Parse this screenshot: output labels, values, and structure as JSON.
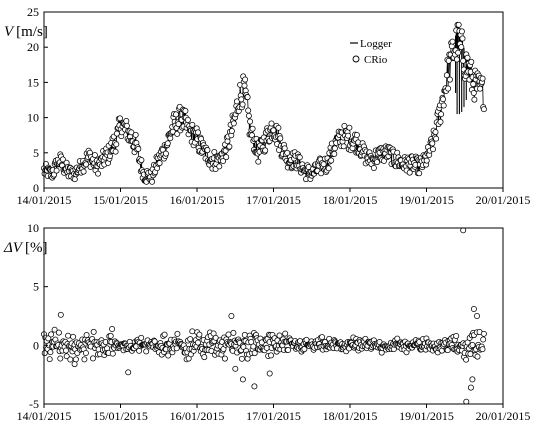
{
  "chart_data": [
    {
      "type": "line",
      "ylabel_symbol": "V",
      "ylabel_unit": "[m/s]",
      "xlabel": "",
      "ylim": [
        0,
        25
      ],
      "yticks": [
        "0",
        "5",
        "10",
        "15",
        "20",
        "25"
      ],
      "xlim": [
        "14/01/2015",
        "20/01/2015"
      ],
      "xticks": [
        "14/01/2015",
        "15/01/2015",
        "16/01/2015",
        "17/01/2015",
        "18/01/2015",
        "19/01/2015",
        "20/01/2015"
      ],
      "legend_position": "top-right",
      "series": [
        {
          "name": "Logger",
          "style": "line"
        },
        {
          "name": "CRio",
          "style": "open-circle"
        }
      ],
      "profile": [
        {
          "t": 0.0,
          "v": 2.5
        },
        {
          "t": 0.1,
          "v": 2.0
        },
        {
          "t": 0.2,
          "v": 4.0
        },
        {
          "t": 0.3,
          "v": 2.5
        },
        {
          "t": 0.4,
          "v": 2.0
        },
        {
          "t": 0.5,
          "v": 3.5
        },
        {
          "t": 0.6,
          "v": 4.5
        },
        {
          "t": 0.7,
          "v": 3.0
        },
        {
          "t": 0.85,
          "v": 5.0
        },
        {
          "t": 0.95,
          "v": 7.0
        },
        {
          "t": 1.0,
          "v": 9.0
        },
        {
          "t": 1.1,
          "v": 8.0
        },
        {
          "t": 1.2,
          "v": 6.0
        },
        {
          "t": 1.3,
          "v": 2.0
        },
        {
          "t": 1.4,
          "v": 1.5
        },
        {
          "t": 1.5,
          "v": 4.0
        },
        {
          "t": 1.6,
          "v": 6.0
        },
        {
          "t": 1.7,
          "v": 9.0
        },
        {
          "t": 1.8,
          "v": 10.0
        },
        {
          "t": 1.9,
          "v": 8.0
        },
        {
          "t": 2.0,
          "v": 7.0
        },
        {
          "t": 2.1,
          "v": 5.0
        },
        {
          "t": 2.2,
          "v": 4.0
        },
        {
          "t": 2.3,
          "v": 4.0
        },
        {
          "t": 2.4,
          "v": 6.0
        },
        {
          "t": 2.5,
          "v": 10.0
        },
        {
          "t": 2.55,
          "v": 13.0
        },
        {
          "t": 2.62,
          "v": 14.0
        },
        {
          "t": 2.7,
          "v": 8.0
        },
        {
          "t": 2.8,
          "v": 5.0
        },
        {
          "t": 2.9,
          "v": 7.0
        },
        {
          "t": 3.0,
          "v": 9.0
        },
        {
          "t": 3.1,
          "v": 6.0
        },
        {
          "t": 3.2,
          "v": 4.0
        },
        {
          "t": 3.3,
          "v": 4.0
        },
        {
          "t": 3.4,
          "v": 2.5
        },
        {
          "t": 3.5,
          "v": 2.0
        },
        {
          "t": 3.6,
          "v": 3.0
        },
        {
          "t": 3.7,
          "v": 3.5
        },
        {
          "t": 3.8,
          "v": 6.0
        },
        {
          "t": 3.9,
          "v": 7.5
        },
        {
          "t": 4.0,
          "v": 7.0
        },
        {
          "t": 4.1,
          "v": 6.5
        },
        {
          "t": 4.2,
          "v": 4.5
        },
        {
          "t": 4.3,
          "v": 4.0
        },
        {
          "t": 4.4,
          "v": 5.0
        },
        {
          "t": 4.5,
          "v": 5.0
        },
        {
          "t": 4.6,
          "v": 4.0
        },
        {
          "t": 4.7,
          "v": 3.5
        },
        {
          "t": 4.8,
          "v": 3.5
        },
        {
          "t": 4.9,
          "v": 3.0
        },
        {
          "t": 5.0,
          "v": 4.0
        },
        {
          "t": 5.1,
          "v": 7.0
        },
        {
          "t": 5.2,
          "v": 12.0
        },
        {
          "t": 5.28,
          "v": 16.5
        },
        {
          "t": 5.35,
          "v": 19.5
        },
        {
          "t": 5.42,
          "v": 21.0
        },
        {
          "t": 5.5,
          "v": 18.0
        },
        {
          "t": 5.55,
          "v": 17.0
        },
        {
          "t": 5.6,
          "v": 15.0
        },
        {
          "t": 5.7,
          "v": 14.0
        },
        {
          "t": 5.75,
          "v": 13.5
        }
      ],
      "drops": [
        {
          "t": 5.4,
          "v": 10.5
        },
        {
          "t": 5.43,
          "v": 10.5
        },
        {
          "t": 5.46,
          "v": 10.8
        },
        {
          "t": 5.49,
          "v": 11.5
        },
        {
          "t": 5.52,
          "v": 12.5
        },
        {
          "t": 5.38,
          "v": 13.5
        }
      ]
    },
    {
      "type": "scatter",
      "ylabel_symbol": "ΔV",
      "ylabel_unit": "[%]",
      "xlabel": "",
      "ylim": [
        -5,
        10
      ],
      "yticks": [
        "-5",
        "0",
        "5",
        "10"
      ],
      "xlim": [
        "14/01/2015",
        "20/01/2015"
      ],
      "xticks": [
        "14/01/2015",
        "15/01/2015",
        "16/01/2015",
        "17/01/2015",
        "18/01/2015",
        "19/01/2015",
        "20/01/2015"
      ],
      "outliers": [
        {
          "t": 0.22,
          "v": 2.6
        },
        {
          "t": 0.4,
          "v": -1.6
        },
        {
          "t": 1.1,
          "v": -2.3
        },
        {
          "t": 2.45,
          "v": 2.5
        },
        {
          "t": 2.5,
          "v": -2.0
        },
        {
          "t": 2.6,
          "v": -2.9
        },
        {
          "t": 2.75,
          "v": -3.5
        },
        {
          "t": 2.95,
          "v": -2.4
        },
        {
          "t": 5.48,
          "v": 9.8
        },
        {
          "t": 5.52,
          "v": -4.8
        },
        {
          "t": 5.58,
          "v": -3.6
        },
        {
          "t": 5.6,
          "v": -2.9
        },
        {
          "t": 5.62,
          "v": 3.1
        },
        {
          "t": 5.66,
          "v": 2.5
        }
      ]
    }
  ]
}
